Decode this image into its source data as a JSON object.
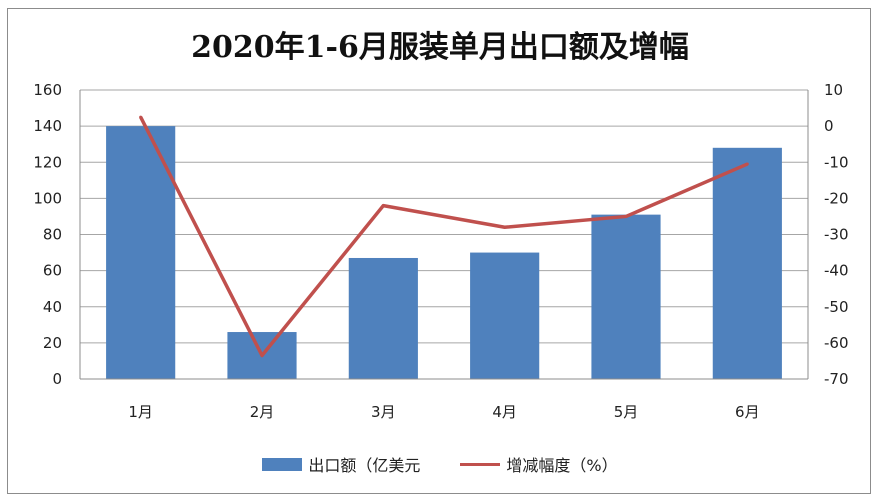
{
  "chart_data": {
    "type": "bar",
    "title": "2020年1-6月服装单月出口额及增幅",
    "categories": [
      "1月",
      "2月",
      "3月",
      "4月",
      "5月",
      "6月"
    ],
    "series": [
      {
        "name": "出口额（亿美元",
        "type": "bar",
        "axis": "left",
        "values": [
          140,
          26,
          67,
          70,
          91,
          128
        ],
        "color": "#4f81bd"
      },
      {
        "name": "增减幅度（%）",
        "type": "line",
        "axis": "right",
        "values": [
          2.5,
          -63.5,
          -22,
          -28,
          -25,
          -10.5
        ],
        "color": "#c0504d"
      }
    ],
    "y_left": {
      "ylim": [
        0,
        160
      ],
      "ticks": [
        0,
        20,
        40,
        60,
        80,
        100,
        120,
        140,
        160
      ]
    },
    "y_right": {
      "ylim": [
        -70,
        10
      ],
      "ticks": [
        10,
        0,
        -10,
        -20,
        -30,
        -40,
        -50,
        -60,
        -70
      ]
    },
    "grid": true,
    "legend_position": "bottom"
  }
}
